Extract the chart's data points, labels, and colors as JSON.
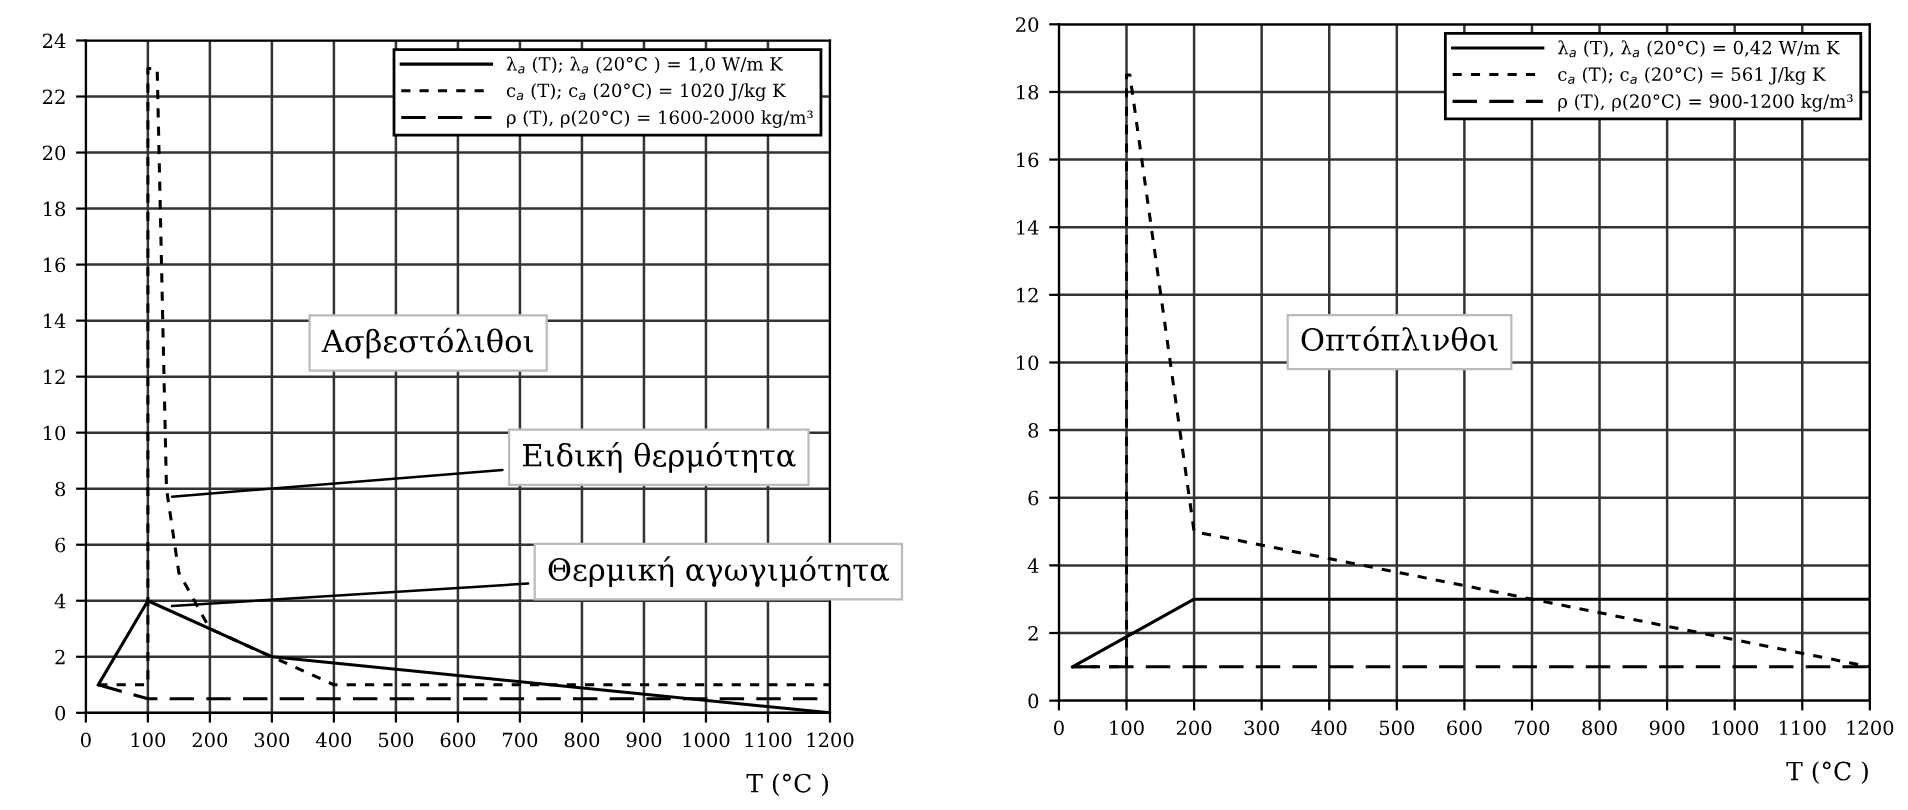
{
  "chart_data": [
    {
      "type": "line",
      "xlabel": "T (°C )",
      "xlim": [
        0,
        1200
      ],
      "xticks": [
        0,
        100,
        200,
        300,
        400,
        500,
        600,
        700,
        800,
        900,
        1000,
        1100,
        1200
      ],
      "ylim": [
        0,
        24
      ],
      "yticks": [
        0,
        2,
        4,
        6,
        8,
        10,
        12,
        14,
        16,
        18,
        20,
        22,
        24
      ],
      "grid": true,
      "legend": "top right",
      "marker": "none",
      "series": [
        {
          "name": "λ$_{a}$ (T); λ$_{a}$ (20°C ) = 1,0 W/m K",
          "color": "#000000",
          "line_style": "solid",
          "x": [
            20,
            100,
            300,
            1200
          ],
          "values": [
            1,
            4,
            2,
            0
          ]
        },
        {
          "name": "c$_{a}$ (T); c$_{a}$ (20°C) = 1020 J/kg K",
          "color": "#000000",
          "line_style": "dashed",
          "x": [
            20,
            100,
            100,
            115,
            130,
            150,
            200,
            300,
            400,
            1200
          ],
          "values": [
            1,
            1,
            23,
            23,
            8,
            5,
            3,
            2,
            1,
            1
          ]
        },
        {
          "name": "ρ (T), ρ(20°C) = 1600-2000 kg/m³",
          "color": "#000000",
          "line_style": "dashed",
          "x": [
            20,
            100,
            1200
          ],
          "values": [
            1,
            0.5,
            0.5
          ]
        }
      ],
      "annotations": [
        "Ασβεστόλιθοι",
        {
          "text": "Ειδική θερμότητα",
          "x": 130,
          "y": 7.7
        },
        {
          "text": "Θερμική αγωγιμότητα",
          "x": 130,
          "y": 3.8
        }
      ]
    },
    {
      "type": "line",
      "xlabel": "T (°C )",
      "xlim": [
        0,
        1200
      ],
      "xticks": [
        0,
        100,
        200,
        300,
        400,
        500,
        600,
        700,
        800,
        900,
        1000,
        1100,
        1200
      ],
      "ylim": [
        0,
        20
      ],
      "yticks": [
        0,
        2,
        4,
        6,
        8,
        10,
        12,
        14,
        16,
        18,
        20
      ],
      "grid": true,
      "legend": "top right",
      "marker": "none",
      "series": [
        {
          "name": "λ$_{a}$ (T), λ$_{a}$ (20°C) = 0,42 W/m K",
          "color": "#000000",
          "line_style": "solid",
          "x": [
            20,
            200,
            1200
          ],
          "values": [
            1,
            3,
            3
          ]
        },
        {
          "name": "c$_{a}$ (T); c$_{a}$ (20°C) = 561 J/kg K",
          "color": "#000000",
          "line_style": "dashed",
          "x": [
            20,
            100,
            100,
            105,
            200,
            1200
          ],
          "values": [
            1,
            1,
            18.5,
            18.5,
            5,
            1
          ]
        },
        {
          "name": "ρ (T), ρ(20°C) = 900-1200 kg/m³",
          "color": "#000000",
          "line_style": "dashed",
          "x": [
            20,
            1200
          ],
          "values": [
            1,
            1
          ]
        }
      ],
      "annotations": [
        "Οπτόπλινθοι"
      ]
    }
  ]
}
